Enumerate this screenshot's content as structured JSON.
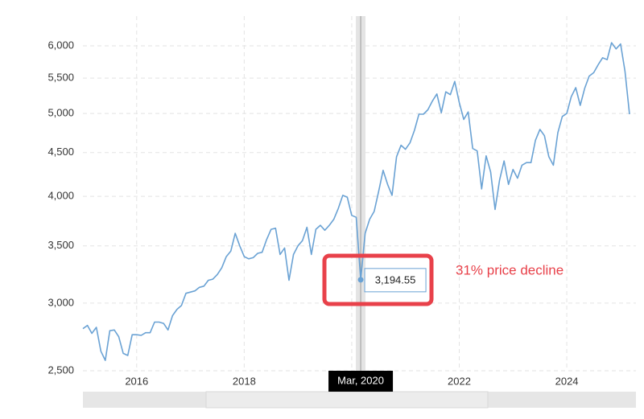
{
  "chart_data": {
    "type": "line",
    "annotation": "31% price decline",
    "hover_label": "Mar, 2020",
    "log_scale": true,
    "grid": true,
    "xlim": [
      "2015-01",
      "2025-03"
    ],
    "xticks": [
      2016,
      2018,
      2020,
      2022,
      2024
    ],
    "ylim": [
      2500,
      6500
    ],
    "yticks": [
      {
        "value": 2500,
        "label": "2,500"
      },
      {
        "value": 3000,
        "label": "3,000"
      },
      {
        "value": 3500,
        "label": "3,500"
      },
      {
        "value": 4000,
        "label": "4,000"
      },
      {
        "value": 4500,
        "label": "4,500"
      },
      {
        "value": 5000,
        "label": "5,000"
      },
      {
        "value": 5500,
        "label": "5,500"
      },
      {
        "value": 6000,
        "label": "6,000"
      }
    ],
    "x": [
      "2015-01",
      "2015-02",
      "2015-03",
      "2015-04",
      "2015-05",
      "2015-06",
      "2015-07",
      "2015-08",
      "2015-09",
      "2015-10",
      "2015-11",
      "2015-12",
      "2016-01",
      "2016-02",
      "2016-03",
      "2016-04",
      "2016-05",
      "2016-06",
      "2016-07",
      "2016-08",
      "2016-09",
      "2016-10",
      "2016-11",
      "2016-12",
      "2017-01",
      "2017-02",
      "2017-03",
      "2017-04",
      "2017-05",
      "2017-06",
      "2017-07",
      "2017-08",
      "2017-09",
      "2017-10",
      "2017-11",
      "2017-12",
      "2018-01",
      "2018-02",
      "2018-03",
      "2018-04",
      "2018-05",
      "2018-06",
      "2018-07",
      "2018-08",
      "2018-09",
      "2018-10",
      "2018-11",
      "2018-12",
      "2019-01",
      "2019-02",
      "2019-03",
      "2019-04",
      "2019-05",
      "2019-06",
      "2019-07",
      "2019-08",
      "2019-09",
      "2019-10",
      "2019-11",
      "2019-12",
      "2020-01",
      "2020-02",
      "2020-03",
      "2020-04",
      "2020-05",
      "2020-06",
      "2020-07",
      "2020-08",
      "2020-09",
      "2020-10",
      "2020-11",
      "2020-12",
      "2021-01",
      "2021-02",
      "2021-03",
      "2021-04",
      "2021-05",
      "2021-06",
      "2021-07",
      "2021-08",
      "2021-09",
      "2021-10",
      "2021-11",
      "2021-12",
      "2022-01",
      "2022-02",
      "2022-03",
      "2022-04",
      "2022-05",
      "2022-06",
      "2022-07",
      "2022-08",
      "2022-09",
      "2022-10",
      "2022-11",
      "2022-12",
      "2023-01",
      "2023-02",
      "2023-03",
      "2023-04",
      "2023-05",
      "2023-06",
      "2023-07",
      "2023-08",
      "2023-09",
      "2023-10",
      "2023-11",
      "2023-12",
      "2024-01",
      "2024-02",
      "2024-03",
      "2024-04",
      "2024-05",
      "2024-06",
      "2024-07",
      "2024-08",
      "2024-09",
      "2024-10",
      "2024-11",
      "2024-12",
      "2025-01",
      "2025-02",
      "2025-03"
    ],
    "series": [
      {
        "color": "#6aa2d4",
        "values": [
          2800,
          2825,
          2765,
          2810,
          2635,
          2571,
          2785,
          2790,
          2740,
          2620,
          2605,
          2755,
          2755,
          2750,
          2770,
          2770,
          2850,
          2850,
          2840,
          2790,
          2900,
          2950,
          2980,
          3080,
          3090,
          3100,
          3130,
          3140,
          3190,
          3200,
          3240,
          3300,
          3400,
          3450,
          3620,
          3500,
          3400,
          3380,
          3390,
          3430,
          3440,
          3560,
          3660,
          3670,
          3420,
          3480,
          3190,
          3420,
          3500,
          3550,
          3680,
          3420,
          3660,
          3700,
          3650,
          3700,
          3760,
          3870,
          4010,
          3990,
          3800,
          3780,
          3194.55,
          3620,
          3760,
          3840,
          4050,
          4290,
          4130,
          4010,
          4450,
          4590,
          4540,
          4620,
          4780,
          4990,
          4990,
          5050,
          5170,
          5270,
          5010,
          5300,
          5260,
          5450,
          5150,
          4920,
          5020,
          4550,
          4520,
          4080,
          4460,
          4270,
          3860,
          4180,
          4400,
          4130,
          4300,
          4200,
          4350,
          4380,
          4380,
          4650,
          4790,
          4710,
          4450,
          4350,
          4750,
          4960,
          5000,
          5230,
          5360,
          5110,
          5350,
          5530,
          5580,
          5700,
          5810,
          5780,
          6050,
          5950,
          6030,
          5600,
          4990
        ],
        "value_labels": [
          null,
          null,
          null,
          null,
          null,
          null,
          null,
          null,
          null,
          null,
          null,
          null,
          null,
          null,
          null,
          null,
          null,
          null,
          null,
          null,
          null,
          null,
          null,
          null,
          null,
          null,
          null,
          null,
          null,
          null,
          null,
          null,
          null,
          null,
          null,
          null,
          null,
          null,
          null,
          null,
          null,
          null,
          null,
          null,
          null,
          null,
          null,
          null,
          null,
          null,
          null,
          null,
          null,
          null,
          null,
          null,
          null,
          null,
          null,
          null,
          null,
          null,
          "3,194.55",
          null,
          null,
          null,
          null,
          null,
          null,
          null,
          null,
          null,
          null,
          null,
          null,
          null,
          null,
          null,
          null,
          null,
          null,
          null,
          null,
          null,
          null,
          null,
          null,
          null,
          null,
          null,
          null,
          null,
          null,
          null,
          null,
          null,
          null,
          null,
          null,
          null,
          null,
          null,
          null,
          null,
          null,
          null,
          null,
          null,
          null,
          null,
          null,
          null,
          null,
          null,
          null,
          null,
          null,
          null,
          null,
          null,
          null,
          null,
          null
        ]
      }
    ]
  }
}
